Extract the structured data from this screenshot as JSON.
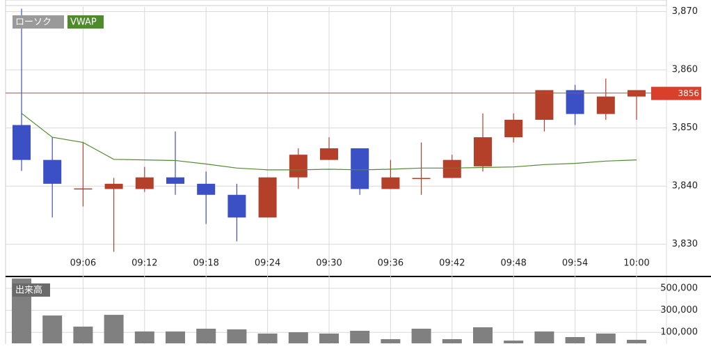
{
  "chart_data": [
    {
      "type": "candlestick",
      "categories": [
        null,
        null,
        "09:06",
        null,
        "09:12",
        null,
        "09:18",
        null,
        "09:24",
        null,
        "09:30",
        null,
        "09:36",
        null,
        "09:42",
        null,
        "09:48",
        null,
        "09:54",
        null,
        "10:00"
      ],
      "series": [
        {
          "name": "ローソク",
          "up_color": "#b5402a",
          "down_color": "#3b50c4",
          "open": [
            3850.5,
            3844.5,
            3839.5,
            3839.5,
            3839.5,
            3841.5,
            3840.4,
            3838.5,
            3834.6,
            3841.5,
            3844.5,
            3846.5,
            3839.5,
            3841.3,
            3841.4,
            3843.4,
            3848.4,
            3851.4,
            3856.5,
            3852.4,
            3855.4
          ],
          "high": [
            3870.5,
            3848.4,
            3847.6,
            3841.4,
            3843.3,
            3849.4,
            3842.5,
            3840.4,
            3841.5,
            3846.5,
            3848.4,
            3846.5,
            3844.5,
            3847.5,
            3845.4,
            3852.5,
            3852.5,
            3856.5,
            3857.4,
            3858.5,
            3856.5
          ],
          "low": [
            3842.6,
            3834.6,
            3836.5,
            3828.7,
            3839.0,
            3838.5,
            3833.5,
            3830.5,
            3834.6,
            3839.5,
            3844.5,
            3838.5,
            3839.5,
            3838.5,
            3841.4,
            3842.5,
            3847.5,
            3849.4,
            3850.5,
            3851.4,
            3851.4
          ],
          "close": [
            3844.5,
            3840.4,
            3839.6,
            3840.4,
            3841.5,
            3840.4,
            3838.5,
            3834.6,
            3841.5,
            3845.4,
            3846.5,
            3839.5,
            3841.5,
            3841.4,
            3844.5,
            3848.4,
            3851.4,
            3856.5,
            3852.4,
            3855.4,
            3856.5
          ]
        },
        {
          "name": "VWAP",
          "color": "#4f8a2c",
          "values": [
            3852.5,
            3848.4,
            3847.5,
            3844.6,
            3844.5,
            3844.4,
            3843.8,
            3843.1,
            3842.8,
            3842.8,
            3842.9,
            3842.8,
            3842.9,
            3843.1,
            3843.1,
            3843.2,
            3843.3,
            3843.7,
            3843.9,
            3844.3,
            3844.5
          ]
        }
      ],
      "ylim": [
        3824.7,
        3870.8
      ],
      "yticks": [
        {
          "value": 3830,
          "label": "3,830"
        },
        {
          "value": 3840,
          "label": "3,840"
        },
        {
          "value": 3850,
          "label": "3,850"
        },
        {
          "value": 3860,
          "label": "3,860"
        },
        {
          "value": 3870,
          "label": "3,870"
        }
      ],
      "last_price": 3856,
      "last_price_color": "#d9402b",
      "grid": true
    },
    {
      "type": "bar",
      "title": "出来高",
      "values": [
        589000,
        253000,
        152000,
        259000,
        108000,
        108000,
        133000,
        127000,
        89000,
        101000,
        89000,
        114000,
        38000,
        133000,
        38000,
        146000,
        25000,
        108000,
        57000,
        89000,
        32000
      ],
      "color": "#808080",
      "ylim": [
        0,
        620000
      ],
      "yticks": [
        {
          "value": 100000,
          "label": "100,000"
        },
        {
          "value": 300000,
          "label": "300,000"
        },
        {
          "value": 500000,
          "label": "500,000"
        }
      ],
      "grid": true
    }
  ]
}
